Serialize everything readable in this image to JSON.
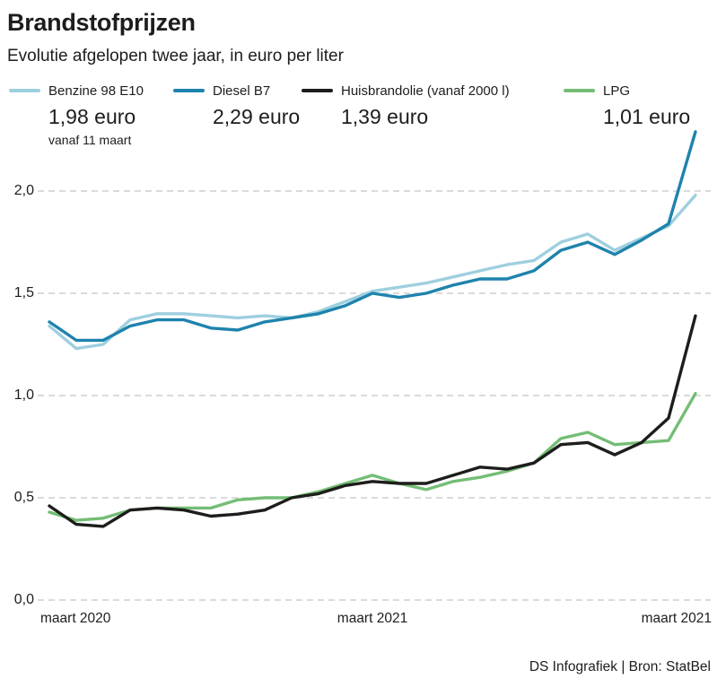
{
  "header": {
    "title": "Brandstofprijzen",
    "subtitle": "Evolutie afgelopen twee jaar, in euro per liter"
  },
  "legend": {
    "items": [
      {
        "label": "Benzine 98 E10",
        "value": "1,98 euro",
        "note": "vanaf 11 maart",
        "color": "#9ecfdf"
      },
      {
        "label": "Diesel B7",
        "value": "2,29 euro",
        "note": "",
        "color": "#1e83ad"
      },
      {
        "label": "Huisbrandolie (vanaf 2000 l)",
        "value": "1,39 euro",
        "note": "",
        "color": "#1d1d1b"
      },
      {
        "label": "LPG",
        "value": "1,01 euro",
        "note": "",
        "color": "#74bd76"
      }
    ]
  },
  "footer": {
    "credit": "DS Infografiek | Bron: StatBel"
  },
  "chart_data": {
    "type": "line",
    "title": "Brandstofprijzen",
    "subtitle": "Evolutie afgelopen twee jaar, in euro per liter",
    "unit": "euro per liter",
    "x_tick_labels": [
      "maart 2020",
      "maart 2021",
      "maart 2021"
    ],
    "y_tick_labels": [
      "2,0",
      "1,5",
      "1,0",
      "0,5",
      "0,0"
    ],
    "y_ticks": [
      2.0,
      1.5,
      1.0,
      0.5,
      0.0
    ],
    "ylim": [
      0.0,
      2.35
    ],
    "grid": "horizontal dashed",
    "legend_position": "top",
    "x_note": "25 samples spanning two years, maart 2020 to maart 2022 (right axis label printed as maart 2021 in source)",
    "series": [
      {
        "name": "Benzine 98 E10",
        "color": "#9ecfdf",
        "end_value_label": "1,98 euro",
        "values": [
          1.34,
          1.23,
          1.25,
          1.37,
          1.4,
          1.4,
          1.39,
          1.38,
          1.39,
          1.38,
          1.41,
          1.46,
          1.51,
          1.53,
          1.55,
          1.58,
          1.61,
          1.64,
          1.66,
          1.75,
          1.79,
          1.71,
          1.77,
          1.83,
          1.98
        ]
      },
      {
        "name": "Diesel B7",
        "color": "#1e83ad",
        "end_value_label": "2,29 euro",
        "values": [
          1.36,
          1.27,
          1.27,
          1.34,
          1.37,
          1.37,
          1.33,
          1.32,
          1.36,
          1.38,
          1.4,
          1.44,
          1.5,
          1.48,
          1.5,
          1.54,
          1.57,
          1.57,
          1.61,
          1.71,
          1.75,
          1.69,
          1.76,
          1.84,
          2.29
        ]
      },
      {
        "name": "LPG",
        "color": "#74bd76",
        "end_value_label": "1,01 euro",
        "values": [
          0.43,
          0.39,
          0.4,
          0.44,
          0.45,
          0.45,
          0.45,
          0.49,
          0.5,
          0.5,
          0.53,
          0.57,
          0.61,
          0.57,
          0.54,
          0.58,
          0.6,
          0.63,
          0.67,
          0.79,
          0.82,
          0.76,
          0.77,
          0.78,
          1.01
        ]
      },
      {
        "name": "Huisbrandolie (vanaf 2000 l)",
        "color": "#1d1d1b",
        "end_value_label": "1,39 euro",
        "values": [
          0.46,
          0.37,
          0.36,
          0.44,
          0.45,
          0.44,
          0.41,
          0.42,
          0.44,
          0.5,
          0.52,
          0.56,
          0.58,
          0.57,
          0.57,
          0.61,
          0.65,
          0.64,
          0.67,
          0.76,
          0.77,
          0.71,
          0.77,
          0.89,
          1.39
        ]
      }
    ]
  }
}
